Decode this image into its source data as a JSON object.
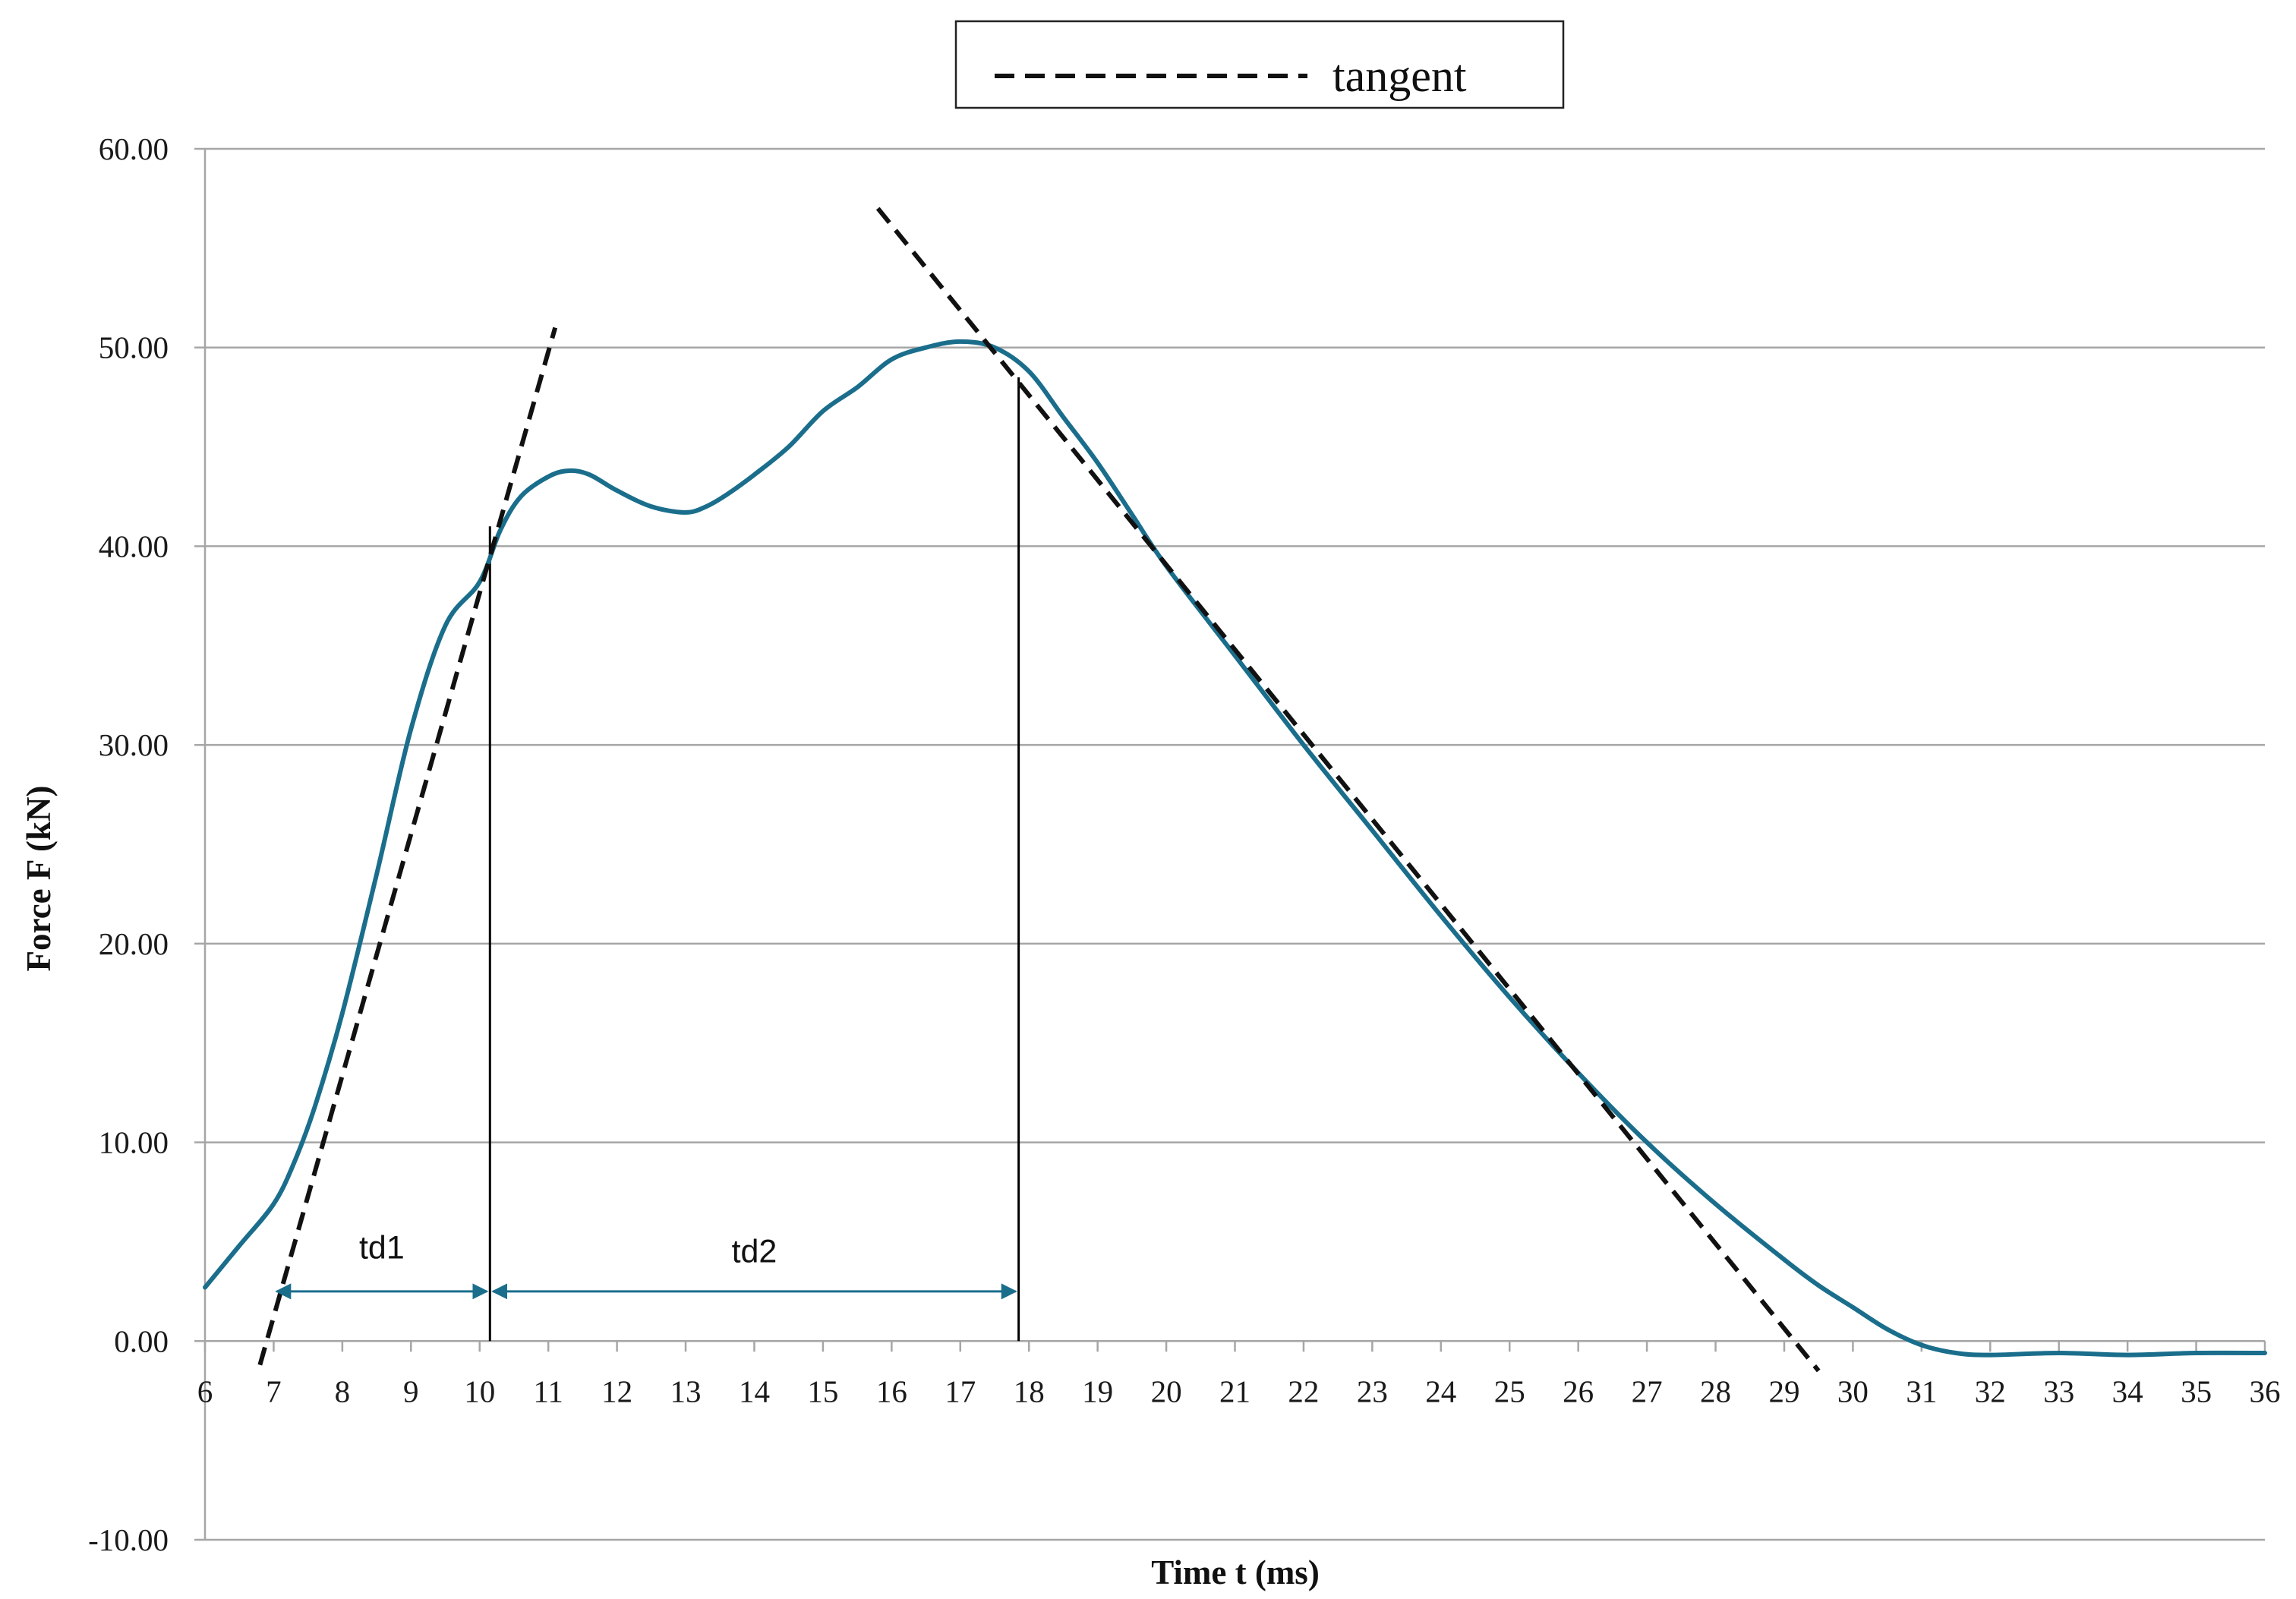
{
  "chart_data": {
    "type": "line",
    "xlabel": "Time t (ms)",
    "ylabel": "Force F (kN)",
    "xlim": [
      6,
      36
    ],
    "ylim": [
      -10,
      60
    ],
    "x_ticks": [
      "6",
      "7",
      "8",
      "9",
      "10",
      "11",
      "12",
      "13",
      "14",
      "15",
      "16",
      "17",
      "18",
      "19",
      "20",
      "21",
      "22",
      "23",
      "24",
      "25",
      "26",
      "27",
      "28",
      "29",
      "30",
      "31",
      "32",
      "33",
      "34",
      "35",
      "36"
    ],
    "y_ticks": [
      "60.00",
      "50.00",
      "40.00",
      "30.00",
      "20.00",
      "10.00",
      "0.00",
      "-10.00"
    ],
    "grid": "horizontal",
    "legend": {
      "position": "top-center",
      "entries": [
        "tangent"
      ]
    },
    "colors": {
      "curve": "#1a6e8c",
      "tangent": "#111111",
      "guide": "#000000",
      "grid": "#a6a6a6",
      "arrow": "#1a6e8c"
    },
    "series": [
      {
        "style": "solid",
        "x": [
          6.0,
          6.5,
          7.0,
          7.3,
          7.6,
          8.0,
          8.5,
          9.0,
          9.5,
          10.0,
          10.3,
          10.6,
          11.0,
          11.3,
          11.6,
          12.0,
          12.5,
          13.0,
          13.3,
          13.6,
          14.0,
          14.5,
          15.0,
          15.5,
          16.0,
          16.5,
          17.0,
          17.5,
          18.0,
          18.5,
          19.0,
          19.5,
          20.0,
          21.0,
          22.0,
          23.0,
          24.0,
          25.0,
          26.0,
          27.0,
          28.0,
          29.0,
          29.5,
          30.0,
          30.5,
          31.0,
          31.5,
          32.0,
          33.0,
          34.0,
          35.0,
          36.0
        ],
        "y": [
          2.7,
          4.8,
          6.9,
          9.0,
          11.8,
          16.5,
          23.5,
          30.8,
          36.0,
          38.2,
          40.8,
          42.5,
          43.5,
          43.8,
          43.6,
          42.8,
          42.0,
          41.7,
          42.0,
          42.6,
          43.6,
          45.0,
          46.8,
          48.0,
          49.4,
          50.0,
          50.3,
          50.0,
          48.8,
          46.5,
          44.2,
          41.6,
          39.0,
          34.5,
          30.0,
          25.7,
          21.4,
          17.3,
          13.5,
          10.0,
          6.9,
          4.1,
          2.8,
          1.7,
          0.6,
          -0.2,
          -0.6,
          -0.7,
          -0.6,
          -0.7,
          -0.6,
          -0.6
        ]
      },
      {
        "name": "tangent",
        "style": "dashed",
        "x": [
          6.8,
          11.1
        ],
        "y": [
          -1.2,
          51.0
        ]
      },
      {
        "name": "tangent",
        "style": "dashed",
        "x": [
          15.8,
          29.5
        ],
        "y": [
          57.0,
          -1.5
        ]
      }
    ],
    "vertical_markers": [
      {
        "x": 10.15,
        "y_from": 0,
        "y_to": 41
      },
      {
        "x": 17.85,
        "y_from": 0,
        "y_to": 48.5
      }
    ],
    "annotations": [
      {
        "text": "td1",
        "x_from": 7.0,
        "x_to": 10.15,
        "y": 2.5,
        "label_y": 4.7
      },
      {
        "text": "td2",
        "x_from": 10.15,
        "x_to": 17.85,
        "y": 2.5,
        "label_y": 4.5
      }
    ]
  }
}
